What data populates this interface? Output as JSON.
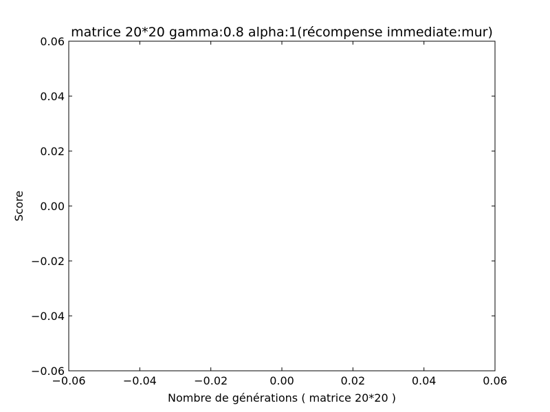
{
  "chart_data": {
    "type": "line",
    "title": "matrice 20*20 gamma:0.8 alpha:1(récompense immediate:mur)",
    "xlabel": "Nombre de générations ( matrice 20*20 )",
    "ylabel": "Score",
    "xlim": [
      -0.06,
      0.06
    ],
    "ylim": [
      -0.06,
      0.06
    ],
    "x_ticks": [
      -0.06,
      -0.04,
      -0.02,
      0.0,
      0.02,
      0.04,
      0.06
    ],
    "y_ticks": [
      -0.06,
      -0.04,
      -0.02,
      0.0,
      0.02,
      0.04,
      0.06
    ],
    "x_tick_labels": [
      "−0.06",
      "−0.04",
      "−0.02",
      "0.00",
      "0.02",
      "0.04",
      "0.06"
    ],
    "y_tick_labels": [
      "−0.06",
      "−0.04",
      "−0.02",
      "0.00",
      "0.02",
      "0.04",
      "0.06"
    ],
    "series": [
      {
        "x": [],
        "y": []
      }
    ],
    "grid": false
  }
}
